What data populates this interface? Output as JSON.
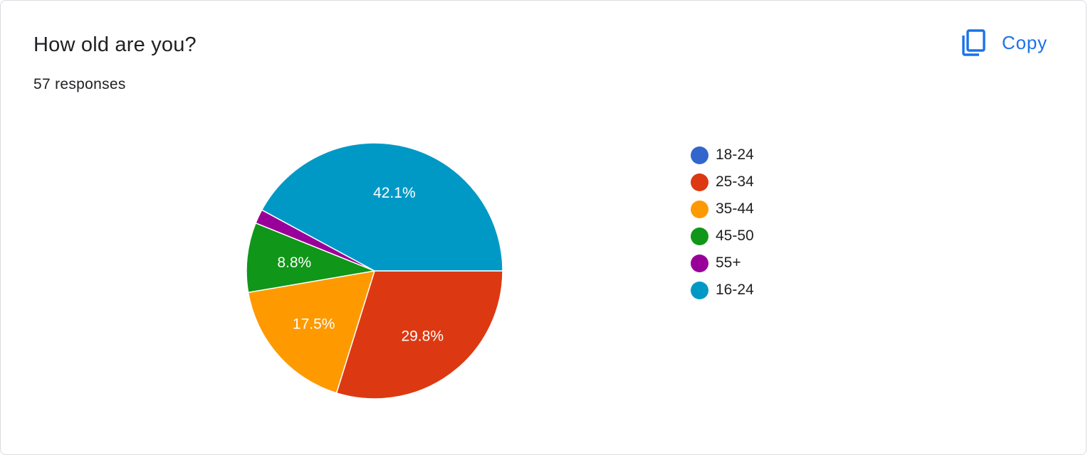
{
  "question": {
    "title": "How old are you?",
    "responses": "57 responses"
  },
  "copy_button": {
    "label": "Copy",
    "icon": "copy-icon"
  },
  "colors": {
    "accent": "#1a73e8",
    "slice_border": "#ffffff"
  },
  "chart_data": {
    "type": "pie",
    "title": "",
    "total_responses": 57,
    "slices": [
      {
        "label": "18-24",
        "percent": 0.0,
        "color": "#3366cc",
        "show_label": false
      },
      {
        "label": "25-34",
        "percent": 29.8,
        "color": "#dc3912",
        "show_label": true,
        "value_label": "29.8%"
      },
      {
        "label": "35-44",
        "percent": 17.5,
        "color": "#ff9900",
        "show_label": true,
        "value_label": "17.5%"
      },
      {
        "label": "45-50",
        "percent": 8.8,
        "color": "#109618",
        "show_label": true,
        "value_label": "8.8%"
      },
      {
        "label": "55+",
        "percent": 1.8,
        "color": "#990099",
        "show_label": false
      },
      {
        "label": "16-24",
        "percent": 42.1,
        "color": "#0099c6",
        "show_label": true,
        "value_label": "42.1%"
      }
    ],
    "legend_position": "right"
  }
}
